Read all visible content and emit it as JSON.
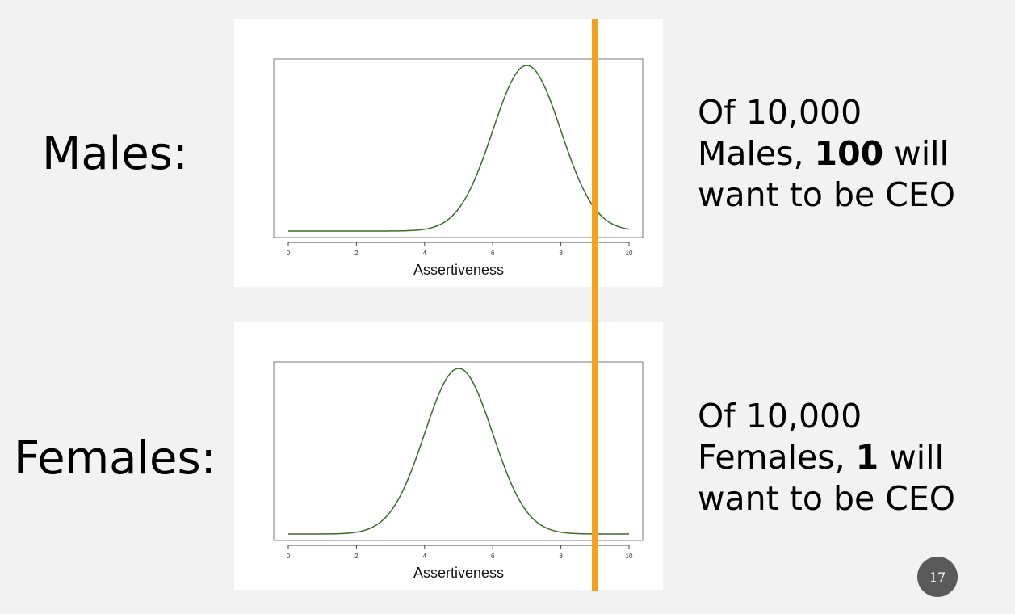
{
  "slide": {
    "page_number": "17",
    "threshold_color": "#f4a21d",
    "curve_color": "#3a6b2a"
  },
  "males": {
    "label": "Males:",
    "caption": {
      "line1": "Of 10,000",
      "line2_prefix": "Males, ",
      "line2_bold": "100",
      "line2_suffix": " will",
      "line3": "want to be CEO"
    }
  },
  "females": {
    "label": "Females:",
    "caption": {
      "line1": "Of 10,000",
      "line2_prefix": "Females, ",
      "line2_bold": "1",
      "line2_suffix": " will",
      "line3": "want to be CEO"
    }
  },
  "chart_data": [
    {
      "type": "line",
      "xlabel": "Assertiveness",
      "xticks": [
        "0",
        "2",
        "4",
        "6",
        "8",
        "10"
      ],
      "xlim": [
        0,
        10
      ],
      "grid": false,
      "distribution": "normal",
      "mean": 7,
      "sd": 1,
      "threshold_x": 9,
      "series": [
        {
          "x": [
            0,
            1,
            2,
            3,
            4,
            4.5,
            5,
            5.5,
            6,
            6.5,
            7,
            7.5,
            8,
            8.5,
            9,
            9.5,
            10
          ],
          "y": [
            0,
            0,
            0,
            0.0001,
            0.0044,
            0.0175,
            0.054,
            0.1295,
            0.242,
            0.352,
            0.399,
            0.352,
            0.242,
            0.1295,
            0.054,
            0.0175,
            0.0044
          ]
        }
      ]
    },
    {
      "type": "line",
      "xlabel": "Assertiveness",
      "xticks": [
        "0",
        "2",
        "4",
        "6",
        "8",
        "10"
      ],
      "xlim": [
        0,
        10
      ],
      "grid": false,
      "distribution": "normal",
      "mean": 5,
      "sd": 1,
      "threshold_x": 9,
      "series": [
        {
          "x": [
            0,
            1,
            2,
            2.5,
            3,
            3.5,
            4,
            4.5,
            5,
            5.5,
            6,
            6.5,
            7,
            7.5,
            8,
            9,
            10
          ],
          "y": [
            0,
            0.0001,
            0.0044,
            0.0175,
            0.054,
            0.1295,
            0.242,
            0.352,
            0.399,
            0.352,
            0.242,
            0.1295,
            0.054,
            0.0175,
            0.0044,
            0.0001,
            0
          ]
        }
      ]
    }
  ]
}
